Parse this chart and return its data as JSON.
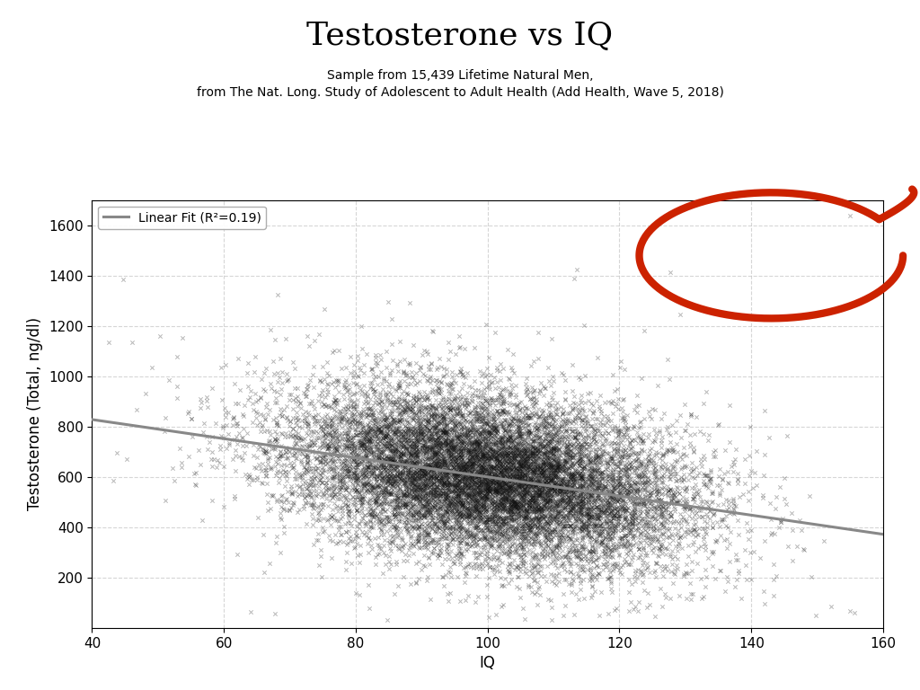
{
  "title": "Testosterone vs IQ",
  "subtitle_line1": "Sample from 15,439 Lifetime Natural Men,",
  "subtitle_line2": "from The Nat. Long. Study of Adolescent to Adult Health (Add Health, Wave 5, 2018)",
  "xlabel": "IQ",
  "ylabel": "Testosterone (Total, ng/dl)",
  "xlim": [
    40,
    160
  ],
  "ylim": [
    0,
    1700
  ],
  "xticks": [
    40,
    60,
    80,
    100,
    120,
    140,
    160
  ],
  "yticks": [
    200,
    400,
    600,
    800,
    1000,
    1200,
    1400,
    1600
  ],
  "n_samples": 15439,
  "linear_fit_intercept": 980,
  "linear_fit_slope": -3.8,
  "r_squared": 0.19,
  "legend_label": "Linear Fit (R²=0.19)",
  "line_color": "#888888",
  "scatter_color": "#111111",
  "scatter_alpha": 0.3,
  "scatter_marker": "x",
  "scatter_size": 10,
  "background_color": "#ffffff",
  "title_fontsize": 26,
  "subtitle_fontsize": 10,
  "axis_label_fontsize": 12,
  "tick_fontsize": 11,
  "legend_fontsize": 10,
  "outlier_x": 155,
  "outlier_y": 1640,
  "red_circle_color": "#cc2200",
  "grid_color": "#bbbbbb",
  "grid_alpha": 0.6,
  "grid_linestyle": "--"
}
